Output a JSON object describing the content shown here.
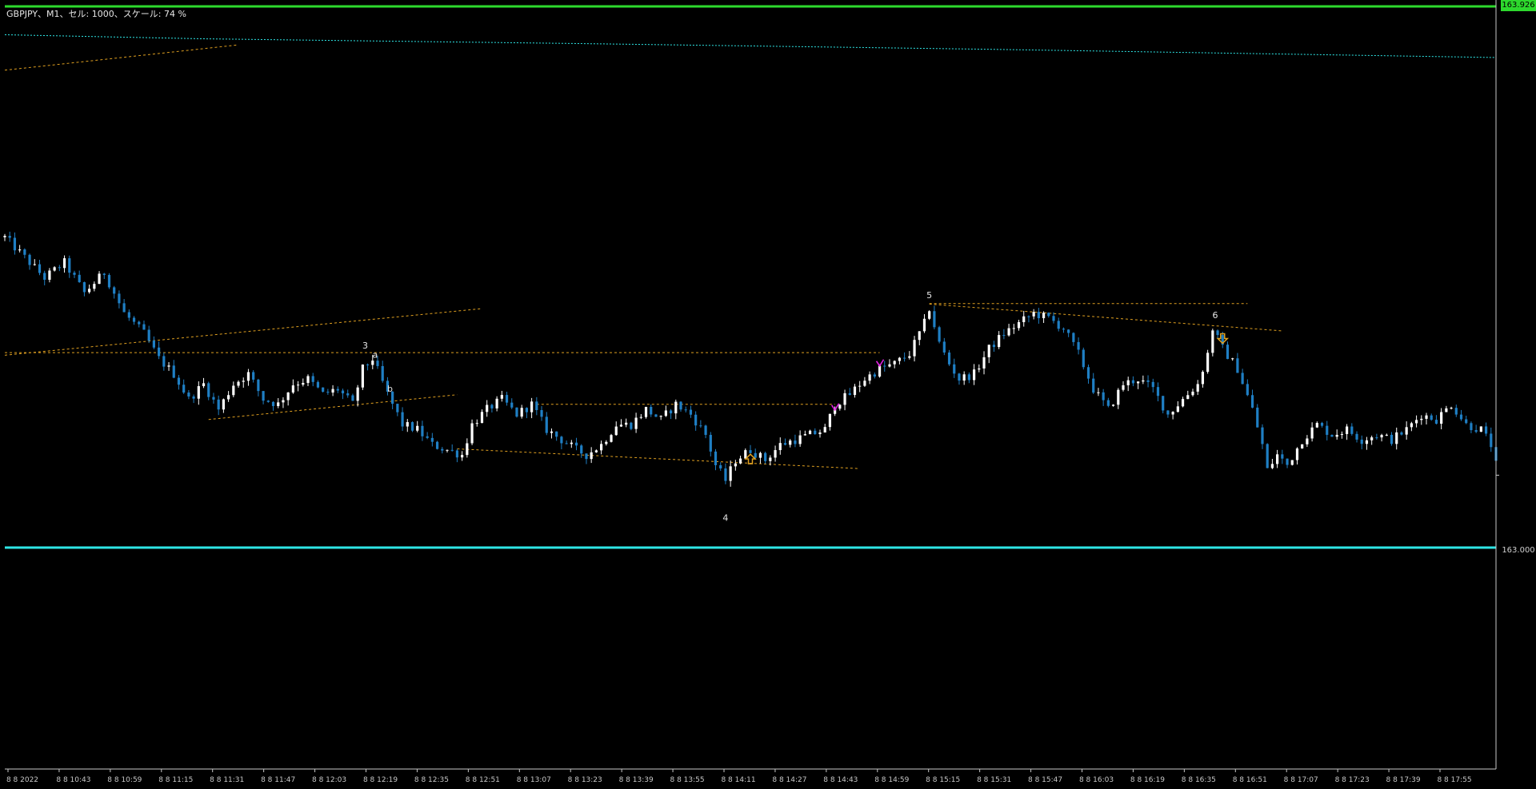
{
  "window": {
    "title": "GBPJPY、M1、セル: 1000、スケール: 74 %"
  },
  "price_axis": {
    "current_price_label": "163.926",
    "level_label": "163.000"
  },
  "colors": {
    "background": "#000000",
    "candle_up": "#ffffff",
    "candle_down": "#1f7fc4",
    "trendline": "#e0a020",
    "cyan_line": "#2ee6e6",
    "current_price": "#2dd92d",
    "axis": "#c8c8c8",
    "magenta_marker": "#e020e0"
  },
  "chart_data": {
    "type": "candlestick",
    "symbol": "GBPJPY",
    "timeframe": "M1",
    "x_tick_labels": [
      "8 8 2022",
      "8 8 10:43",
      "8 8 10:59",
      "8 8 11:15",
      "8 8 11:31",
      "8 8 11:47",
      "8 8 12:03",
      "8 8 12:19",
      "8 8 12:35",
      "8 8 12:51",
      "8 8 13:07",
      "8 8 13:23",
      "8 8 13:39",
      "8 8 13:55",
      "8 8 14:11",
      "8 8 14:27",
      "8 8 14:43",
      "8 8 14:59",
      "8 8 15:15",
      "8 8 15:31",
      "8 8 15:47",
      "8 8 16:03",
      "8 8 16:19",
      "8 8 16:35",
      "8 8 16:51",
      "8 8 17:07",
      "8 8 17:23",
      "8 8 17:39",
      "8 8 17:55"
    ],
    "y_tick_labels": [
      "163.000"
    ],
    "current_price": 163.926,
    "ylim": [
      162.88,
      163.926
    ],
    "annotations": [
      "3",
      "a",
      "b",
      "4",
      "5",
      "6"
    ],
    "wave_labels": [
      {
        "text": "3",
        "x": 72.5,
        "price": 163.25
      },
      {
        "text": "a",
        "x": 74.5,
        "price": 163.232
      },
      {
        "text": "b",
        "x": 77.5,
        "price": 163.165
      },
      {
        "text": "4",
        "x": 145,
        "price": 162.91
      },
      {
        "text": "5",
        "x": 186,
        "price": 163.35
      },
      {
        "text": "6",
        "x": 243.5,
        "price": 163.31
      }
    ],
    "arrows": [
      {
        "direction": "up",
        "x": 150,
        "price": 163.032
      },
      {
        "direction": "down",
        "x": 245,
        "price": 163.27
      }
    ],
    "magenta_markers": [
      {
        "x": 176,
        "price": 163.219
      },
      {
        "x": 167,
        "price": 163.132
      }
    ],
    "candle_path": [
      [
        0,
        163.47
      ],
      [
        4,
        163.43
      ],
      [
        8,
        163.39
      ],
      [
        12,
        163.42
      ],
      [
        16,
        163.36
      ],
      [
        20,
        163.4
      ],
      [
        24,
        163.32
      ],
      [
        28,
        163.28
      ],
      [
        31,
        163.23
      ],
      [
        34,
        163.2
      ],
      [
        37,
        163.15
      ],
      [
        40,
        163.18
      ],
      [
        43,
        163.13
      ],
      [
        46,
        163.18
      ],
      [
        49,
        163.2
      ],
      [
        52,
        163.15
      ],
      [
        55,
        163.14
      ],
      [
        58,
        163.18
      ],
      [
        61,
        163.19
      ],
      [
        64,
        163.16
      ],
      [
        67,
        163.17
      ],
      [
        70,
        163.14
      ],
      [
        72,
        163.21
      ],
      [
        74,
        163.23
      ],
      [
        77,
        163.16
      ],
      [
        80,
        163.1
      ],
      [
        83,
        163.09
      ],
      [
        86,
        163.06
      ],
      [
        89,
        163.05
      ],
      [
        92,
        163.04
      ],
      [
        94,
        163.1
      ],
      [
        97,
        163.13
      ],
      [
        100,
        163.15
      ],
      [
        103,
        163.12
      ],
      [
        106,
        163.14
      ],
      [
        109,
        163.09
      ],
      [
        112,
        163.07
      ],
      [
        115,
        163.05
      ],
      [
        117,
        163.04
      ],
      [
        120,
        163.06
      ],
      [
        123,
        163.1
      ],
      [
        126,
        163.1
      ],
      [
        129,
        163.13
      ],
      [
        132,
        163.11
      ],
      [
        135,
        163.14
      ],
      [
        138,
        163.12
      ],
      [
        141,
        163.08
      ],
      [
        143,
        163.02
      ],
      [
        145,
        162.99
      ],
      [
        147,
        163.03
      ],
      [
        150,
        163.05
      ],
      [
        153,
        163.03
      ],
      [
        156,
        163.06
      ],
      [
        159,
        163.07
      ],
      [
        162,
        163.08
      ],
      [
        165,
        163.09
      ],
      [
        167,
        163.14
      ],
      [
        170,
        163.16
      ],
      [
        173,
        163.19
      ],
      [
        176,
        163.21
      ],
      [
        179,
        163.22
      ],
      [
        182,
        163.24
      ],
      [
        185,
        163.3
      ],
      [
        186,
        163.33
      ],
      [
        188,
        163.26
      ],
      [
        190,
        163.22
      ],
      [
        192,
        163.19
      ],
      [
        195,
        163.2
      ],
      [
        198,
        163.25
      ],
      [
        201,
        163.28
      ],
      [
        204,
        163.3
      ],
      [
        207,
        163.32
      ],
      [
        210,
        163.31
      ],
      [
        213,
        163.29
      ],
      [
        216,
        163.24
      ],
      [
        219,
        163.17
      ],
      [
        222,
        163.13
      ],
      [
        225,
        163.18
      ],
      [
        228,
        163.19
      ],
      [
        231,
        163.17
      ],
      [
        234,
        163.12
      ],
      [
        237,
        163.15
      ],
      [
        240,
        163.18
      ],
      [
        242,
        163.24
      ],
      [
        243,
        163.29
      ],
      [
        245,
        163.25
      ],
      [
        248,
        163.21
      ],
      [
        251,
        163.13
      ],
      [
        253,
        163.06
      ],
      [
        254,
        163.01
      ],
      [
        256,
        163.04
      ],
      [
        258,
        163.02
      ],
      [
        261,
        163.07
      ],
      [
        264,
        163.1
      ],
      [
        267,
        163.08
      ],
      [
        270,
        163.09
      ],
      [
        273,
        163.07
      ],
      [
        276,
        163.08
      ],
      [
        279,
        163.07
      ],
      [
        282,
        163.09
      ],
      [
        285,
        163.12
      ],
      [
        288,
        163.11
      ],
      [
        291,
        163.14
      ],
      [
        294,
        163.1
      ],
      [
        297,
        163.09
      ],
      [
        299,
        163.06
      ],
      [
        300,
        163.02
      ]
    ],
    "horizontal_levels": [
      {
        "price": 163.242,
        "x_start": 0,
        "x_end": 176
      },
      {
        "price": 163.14,
        "x_start": 107,
        "x_end": 167
      },
      {
        "price": 163.339,
        "x_start": 186,
        "x_end": 250
      },
      {
        "price": 162.857,
        "x_start": 0,
        "x_end": 300
      },
      {
        "price": 163.926,
        "x_start": 0,
        "x_end": 300
      }
    ],
    "trendlines": [
      {
        "from": [
          0,
          163.8
        ],
        "to": [
          47,
          163.85
        ]
      },
      {
        "from": [
          0,
          163.237
        ],
        "to": [
          96,
          163.329
        ]
      },
      {
        "from": [
          41,
          163.11
        ],
        "to": [
          91,
          163.159
        ]
      },
      {
        "from": [
          91,
          163.052
        ],
        "to": [
          172,
          163.013
        ]
      },
      {
        "from": [
          186,
          163.338
        ],
        "to": [
          257,
          163.285
        ]
      }
    ],
    "cyan_curve": [
      [
        0,
        163.87
      ],
      [
        40,
        163.862
      ],
      [
        120,
        163.852
      ],
      [
        200,
        163.841
      ],
      [
        300,
        163.825
      ]
    ],
    "grid": false
  }
}
